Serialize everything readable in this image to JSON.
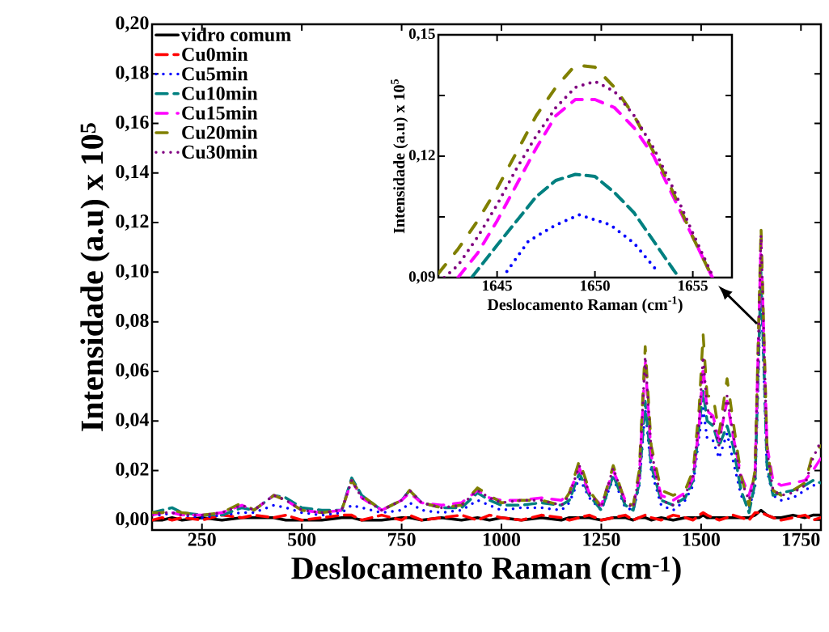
{
  "chart_data": [
    {
      "type": "line",
      "xlabel": "Deslocamento Raman (cm$^{-1}$)",
      "ylabel": "Intensidade (a.u) x 10$^{5}$",
      "legend": "top left",
      "xlim": [
        125,
        1800
      ],
      "ylim": [
        -0.004,
        0.2
      ],
      "xticks": [
        250,
        500,
        750,
        1000,
        1250,
        1500,
        1750
      ],
      "yticks": [
        {
          "value": 0,
          "label": "0,00"
        },
        {
          "value": 0.02,
          "label": "0,02"
        },
        {
          "value": 0.04,
          "label": "0,04"
        },
        {
          "value": 0.06,
          "label": "0,06"
        },
        {
          "value": 0.08,
          "label": "0,08"
        },
        {
          "value": 0.1,
          "label": "0,10"
        },
        {
          "value": 0.12,
          "label": "0,12"
        },
        {
          "value": 0.14,
          "label": "0,14"
        },
        {
          "value": 0.16,
          "label": "0,16"
        },
        {
          "value": 0.18,
          "label": "0,18"
        },
        {
          "value": 0.2,
          "label": "0,20"
        }
      ],
      "x": [
        125,
        150,
        175,
        200,
        250,
        300,
        350,
        380,
        430,
        460,
        500,
        550,
        600,
        625,
        650,
        700,
        750,
        770,
        800,
        850,
        900,
        940,
        970,
        1000,
        1050,
        1100,
        1150,
        1170,
        1195,
        1220,
        1250,
        1280,
        1310,
        1330,
        1345,
        1360,
        1375,
        1400,
        1430,
        1460,
        1480,
        1495,
        1505,
        1515,
        1530,
        1545,
        1565,
        1580,
        1600,
        1620,
        1635,
        1650,
        1665,
        1680,
        1700,
        1730,
        1760,
        1780,
        1800
      ],
      "series": [
        {
          "name": "vidro comum",
          "color": "#000000",
          "line_style": "solid",
          "values": [
            0.0,
            0.0,
            0.001,
            0.0,
            0.001,
            0.0,
            0.001,
            0.001,
            0.001,
            0.0,
            0.0,
            0.0,
            0.001,
            0.001,
            0.0,
            0.0,
            0.001,
            0.001,
            0.0,
            0.001,
            0.0,
            0.001,
            0.0,
            0.001,
            0.0,
            0.001,
            0.0,
            0.001,
            0.001,
            0.001,
            0.0,
            0.001,
            0.001,
            0.0,
            0.001,
            0.001,
            0.0,
            0.001,
            0.0,
            0.001,
            0.001,
            0.001,
            0.002,
            0.001,
            0.001,
            0.001,
            0.001,
            0.001,
            0.001,
            0.001,
            0.002,
            0.004,
            0.002,
            0.001,
            0.001,
            0.002,
            0.001,
            0.002,
            0.002
          ]
        },
        {
          "name": "Cu0min",
          "color": "#ff0000",
          "line_style": "dashed",
          "values": [
            0.0,
            0.001,
            0.0,
            0.001,
            0.0,
            0.002,
            0.001,
            0.002,
            0.001,
            0.002,
            0.0,
            0.001,
            0.002,
            0.002,
            0.0,
            0.002,
            0.0,
            0.002,
            0.0,
            0.001,
            0.002,
            0.0,
            0.002,
            0.001,
            0.0,
            0.002,
            0.001,
            0.0,
            0.001,
            0.002,
            0.0,
            0.001,
            0.002,
            0.0,
            0.001,
            0.002,
            0.001,
            0.0,
            0.002,
            0.001,
            0.0,
            0.002,
            0.003,
            0.002,
            0.001,
            0.0,
            0.001,
            0.002,
            0.001,
            0.0,
            0.003,
            0.003,
            0.002,
            0.001,
            0.0,
            0.001,
            0.002,
            0.0,
            0.001
          ]
        },
        {
          "name": "Cu5min",
          "color": "#0000ff",
          "line_style": "dotted",
          "values": [
            0.002,
            0.002,
            0.003,
            0.002,
            0.001,
            0.002,
            0.003,
            0.003,
            0.006,
            0.005,
            0.003,
            0.002,
            0.003,
            0.006,
            0.005,
            0.003,
            0.004,
            0.007,
            0.004,
            0.003,
            0.004,
            0.008,
            0.006,
            0.004,
            0.005,
            0.005,
            0.004,
            0.007,
            0.017,
            0.009,
            0.004,
            0.017,
            0.005,
            0.004,
            0.014,
            0.045,
            0.02,
            0.006,
            0.004,
            0.008,
            0.014,
            0.034,
            0.045,
            0.033,
            0.032,
            0.025,
            0.035,
            0.024,
            0.01,
            0.005,
            0.013,
            0.095,
            0.02,
            0.01,
            0.008,
            0.009,
            0.012,
            0.014,
            0.014
          ]
        },
        {
          "name": "Cu10min",
          "color": "#008080",
          "line_style": "dashed",
          "values": [
            0.003,
            0.004,
            0.005,
            0.003,
            0.002,
            0.002,
            0.005,
            0.004,
            0.01,
            0.009,
            0.005,
            0.004,
            0.004,
            0.017,
            0.01,
            0.004,
            0.008,
            0.012,
            0.007,
            0.005,
            0.005,
            0.011,
            0.008,
            0.006,
            0.006,
            0.007,
            0.006,
            0.008,
            0.019,
            0.01,
            0.004,
            0.018,
            0.006,
            0.004,
            0.015,
            0.048,
            0.022,
            0.008,
            0.006,
            0.009,
            0.016,
            0.038,
            0.052,
            0.04,
            0.038,
            0.03,
            0.038,
            0.03,
            0.012,
            0.003,
            0.015,
            0.1,
            0.022,
            0.01,
            0.011,
            0.012,
            0.014,
            0.016,
            0.015
          ]
        },
        {
          "name": "Cu15min",
          "color": "#ff00ff",
          "line_style": "dashdot",
          "values": [
            0.002,
            0.003,
            0.003,
            0.002,
            0.002,
            0.003,
            0.006,
            0.004,
            0.01,
            0.008,
            0.004,
            0.003,
            0.004,
            0.016,
            0.009,
            0.004,
            0.008,
            0.011,
            0.007,
            0.006,
            0.007,
            0.012,
            0.009,
            0.008,
            0.008,
            0.009,
            0.008,
            0.011,
            0.021,
            0.011,
            0.006,
            0.02,
            0.008,
            0.006,
            0.017,
            0.064,
            0.026,
            0.01,
            0.008,
            0.011,
            0.017,
            0.038,
            0.062,
            0.044,
            0.042,
            0.032,
            0.048,
            0.034,
            0.018,
            0.01,
            0.019,
            0.113,
            0.03,
            0.016,
            0.014,
            0.015,
            0.016,
            0.02,
            0.025
          ]
        },
        {
          "name": "Cu20min",
          "color": "#808000",
          "line_style": "dashdotdot",
          "values": [
            0.003,
            0.003,
            0.004,
            0.003,
            0.002,
            0.003,
            0.007,
            0.004,
            0.01,
            0.008,
            0.004,
            0.003,
            0.004,
            0.016,
            0.01,
            0.004,
            0.008,
            0.012,
            0.007,
            0.005,
            0.006,
            0.013,
            0.01,
            0.007,
            0.008,
            0.008,
            0.006,
            0.011,
            0.024,
            0.012,
            0.005,
            0.022,
            0.007,
            0.006,
            0.02,
            0.07,
            0.03,
            0.012,
            0.01,
            0.012,
            0.02,
            0.045,
            0.075,
            0.05,
            0.05,
            0.035,
            0.057,
            0.04,
            0.018,
            0.006,
            0.02,
            0.118,
            0.03,
            0.012,
            0.01,
            0.012,
            0.015,
            0.027,
            0.03
          ]
        },
        {
          "name": "Cu30min",
          "color": "#800080",
          "line_style": "dotted",
          "values": [
            0.002,
            0.003,
            0.003,
            0.002,
            0.002,
            0.003,
            0.006,
            0.004,
            0.01,
            0.008,
            0.004,
            0.003,
            0.004,
            0.016,
            0.009,
            0.004,
            0.008,
            0.012,
            0.007,
            0.005,
            0.006,
            0.012,
            0.009,
            0.007,
            0.008,
            0.008,
            0.006,
            0.01,
            0.022,
            0.011,
            0.005,
            0.021,
            0.007,
            0.005,
            0.018,
            0.066,
            0.028,
            0.008,
            0.006,
            0.01,
            0.018,
            0.04,
            0.066,
            0.045,
            0.04,
            0.03,
            0.05,
            0.035,
            0.016,
            0.008,
            0.018,
            0.115,
            0.028,
            0.012,
            0.01,
            0.011,
            0.014,
            0.025,
            0.032
          ]
        }
      ]
    },
    {
      "type": "line",
      "xlabel": "Deslocamento Raman (cm$^{-1}$)",
      "ylabel": "Intensidade (a.u) x 10$^{5}$",
      "xlim": [
        1642,
        1657
      ],
      "ylim": [
        0.09,
        0.15
      ],
      "xticks": [
        1645,
        1650,
        1655
      ],
      "yticks": [
        {
          "value": 0.09,
          "label": "0,09"
        },
        {
          "value": 0.105,
          "label": null
        },
        {
          "value": 0.12,
          "label": "0,12"
        },
        {
          "value": 0.135,
          "label": null
        },
        {
          "value": 0.15,
          "label": "0,15"
        }
      ],
      "series": [
        {
          "color": "#0000ff",
          "line_style": "dotted",
          "x": [
            1645.5,
            1646.6,
            1648,
            1649.2,
            1650.8,
            1652,
            1653.2
          ],
          "values": [
            0.0915,
            0.099,
            0.103,
            0.1055,
            0.103,
            0.0985,
            0.0915
          ]
        },
        {
          "color": "#008080",
          "line_style": "dashed",
          "x": [
            1643.7,
            1645,
            1646,
            1647,
            1648,
            1649,
            1650,
            1651,
            1652,
            1653,
            1654,
            1654.3
          ],
          "values": [
            0.09,
            0.098,
            0.104,
            0.11,
            0.114,
            0.1155,
            0.115,
            0.111,
            0.106,
            0.099,
            0.092,
            0.09
          ]
        },
        {
          "color": "#ff00ff",
          "line_style": "dashdot",
          "x": [
            1643,
            1644,
            1645,
            1646,
            1647,
            1648,
            1649,
            1650,
            1651,
            1652,
            1653,
            1654,
            1655,
            1656
          ],
          "values": [
            0.09,
            0.096,
            0.104,
            0.113,
            0.122,
            0.13,
            0.134,
            0.134,
            0.132,
            0.127,
            0.12,
            0.11,
            0.1,
            0.09
          ]
        },
        {
          "color": "#808000",
          "line_style": "dashdotdot",
          "x": [
            1642,
            1643,
            1644,
            1645,
            1646,
            1647,
            1648,
            1649,
            1650,
            1651,
            1652,
            1653,
            1654,
            1655,
            1656
          ],
          "values": [
            0.091,
            0.097,
            0.104,
            0.112,
            0.121,
            0.13,
            0.137,
            0.1425,
            0.142,
            0.137,
            0.13,
            0.121,
            0.111,
            0.1,
            0.09
          ]
        },
        {
          "color": "#800080",
          "line_style": "dotted",
          "x": [
            1642.3,
            1643,
            1644,
            1645,
            1646,
            1647,
            1648,
            1649,
            1650,
            1651,
            1652,
            1653,
            1654,
            1655,
            1656
          ],
          "values": [
            0.09,
            0.093,
            0.1,
            0.108,
            0.117,
            0.125,
            0.132,
            0.137,
            0.1385,
            0.136,
            0.13,
            0.122,
            0.112,
            0.101,
            0.0905
          ]
        }
      ]
    }
  ]
}
